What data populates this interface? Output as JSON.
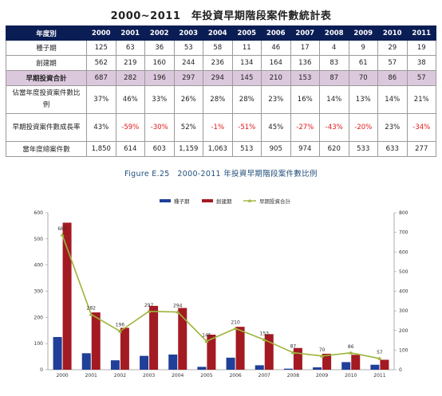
{
  "table_title": "2000~2011　年投資早期階段案件數統計表",
  "table": {
    "header_label": "年度別",
    "years": [
      "2000",
      "2001",
      "2002",
      "2003",
      "2004",
      "2005",
      "2006",
      "2007",
      "2008",
      "2009",
      "2010",
      "2011"
    ],
    "rows": [
      {
        "label": "種子期",
        "values": [
          "125",
          "63",
          "36",
          "53",
          "58",
          "11",
          "46",
          "17",
          "4",
          "9",
          "29",
          "19"
        ]
      },
      {
        "label": "創建期",
        "values": [
          "562",
          "219",
          "160",
          "244",
          "236",
          "134",
          "164",
          "136",
          "83",
          "61",
          "57",
          "38"
        ]
      },
      {
        "label": "早期投資合計",
        "values": [
          "687",
          "282",
          "196",
          "297",
          "294",
          "145",
          "210",
          "153",
          "87",
          "70",
          "86",
          "57"
        ]
      },
      {
        "label": "佔當年度投資案件數比例",
        "values": [
          "37%",
          "46%",
          "33%",
          "26%",
          "28%",
          "28%",
          "23%",
          "16%",
          "14%",
          "13%",
          "14%",
          "21%"
        ]
      },
      {
        "label": "早期投資案件數成長率",
        "values": [
          "43%",
          "-59%",
          "-30%",
          "52%",
          "-1%",
          "-51%",
          "45%",
          "-27%",
          "-43%",
          "-20%",
          "23%",
          "-34%"
        ]
      },
      {
        "label": "當年度總案件數",
        "values": [
          "1,850",
          "614",
          "603",
          "1,159",
          "1,063",
          "513",
          "905",
          "974",
          "620",
          "533",
          "633",
          "277"
        ]
      }
    ]
  },
  "figure_title": "Figure E.25　2000-2011 年投資早期階段案件數比例",
  "colors": {
    "seed": "#1f3f99",
    "startup": "#a31a22",
    "total": "#9db43a",
    "header_bg": "#0b1d55",
    "highlight_row": "#dcc8dc",
    "negative": "#e01818"
  },
  "chart_data": {
    "type": "bar",
    "categories": [
      "2000",
      "2001",
      "2002",
      "2003",
      "2004",
      "2005",
      "2006",
      "2007",
      "2008",
      "2009",
      "2010",
      "2011"
    ],
    "series": [
      {
        "name": "種子期",
        "type": "bar",
        "axis": "left",
        "values": [
          125,
          63,
          36,
          53,
          58,
          11,
          46,
          17,
          4,
          9,
          29,
          19
        ]
      },
      {
        "name": "創建期",
        "type": "bar",
        "axis": "left",
        "values": [
          562,
          219,
          160,
          244,
          236,
          134,
          164,
          136,
          83,
          61,
          57,
          38
        ]
      },
      {
        "name": "早期投資合計",
        "type": "line",
        "axis": "right",
        "values": [
          687,
          282,
          196,
          297,
          294,
          145,
          210,
          153,
          87,
          70,
          86,
          57
        ]
      }
    ],
    "y_left_ticks": [
      0,
      100,
      200,
      300,
      400,
      500,
      600
    ],
    "y_right_ticks": [
      0,
      100,
      200,
      300,
      400,
      500,
      600,
      700,
      800
    ],
    "ylim_left": [
      0,
      600
    ],
    "ylim_right": [
      0,
      800
    ],
    "legend_position": "top-center"
  }
}
